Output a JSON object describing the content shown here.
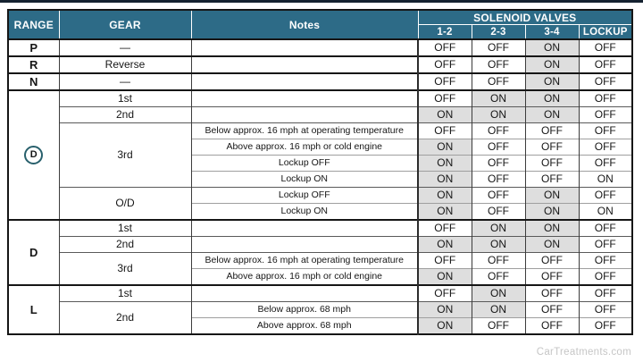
{
  "watermark": "CarTreatments.com",
  "colors": {
    "header_bg": "#2d6b87",
    "header_text": "#ffffff",
    "on_cell_bg": "#dedede",
    "top_bar": "#152230",
    "border_dark": "#161616",
    "watermark_text": "#c6c6c6",
    "circle_outline": "#28606c"
  },
  "chart_data": {
    "type": "table",
    "header": {
      "range": "RANGE",
      "gear": "GEAR",
      "notes": "Notes",
      "group": "SOLENOID VALVES",
      "solenoid_columns": [
        "1-2",
        "2-3",
        "3-4",
        "LOCKUP"
      ]
    },
    "on_value": "ON",
    "off_value": "OFF",
    "shade_on_columns": [
      "1-2",
      "2-3",
      "3-4"
    ],
    "sections": [
      {
        "range": "P",
        "circled": false,
        "gears": [
          {
            "name": "—",
            "rows": [
              {
                "note": "",
                "values": [
                  "OFF",
                  "OFF",
                  "ON",
                  "OFF"
                ]
              }
            ]
          }
        ]
      },
      {
        "range": "R",
        "circled": false,
        "gears": [
          {
            "name": "Reverse",
            "rows": [
              {
                "note": "",
                "values": [
                  "OFF",
                  "OFF",
                  "ON",
                  "OFF"
                ]
              }
            ]
          }
        ]
      },
      {
        "range": "N",
        "circled": false,
        "gears": [
          {
            "name": "—",
            "rows": [
              {
                "note": "",
                "values": [
                  "OFF",
                  "OFF",
                  "ON",
                  "OFF"
                ]
              }
            ]
          }
        ]
      },
      {
        "range": "D",
        "circled": true,
        "gears": [
          {
            "name": "1st",
            "rows": [
              {
                "note": "",
                "values": [
                  "OFF",
                  "ON",
                  "ON",
                  "OFF"
                ]
              }
            ]
          },
          {
            "name": "2nd",
            "rows": [
              {
                "note": "",
                "values": [
                  "ON",
                  "ON",
                  "ON",
                  "OFF"
                ]
              }
            ]
          },
          {
            "name": "3rd",
            "rows": [
              {
                "note": "Below approx. 16 mph at operating temperature",
                "values": [
                  "OFF",
                  "OFF",
                  "OFF",
                  "OFF"
                ]
              },
              {
                "note": "Above approx. 16 mph or cold engine",
                "values": [
                  "ON",
                  "OFF",
                  "OFF",
                  "OFF"
                ]
              },
              {
                "note": "Lockup OFF",
                "values": [
                  "ON",
                  "OFF",
                  "OFF",
                  "OFF"
                ]
              },
              {
                "note": "Lockup ON",
                "values": [
                  "ON",
                  "OFF",
                  "OFF",
                  "ON"
                ]
              }
            ]
          },
          {
            "name": "O/D",
            "rows": [
              {
                "note": "Lockup OFF",
                "values": [
                  "ON",
                  "OFF",
                  "ON",
                  "OFF"
                ]
              },
              {
                "note": "Lockup ON",
                "values": [
                  "ON",
                  "OFF",
                  "ON",
                  "ON"
                ]
              }
            ]
          }
        ]
      },
      {
        "range": "D",
        "circled": false,
        "gears": [
          {
            "name": "1st",
            "rows": [
              {
                "note": "",
                "values": [
                  "OFF",
                  "ON",
                  "ON",
                  "OFF"
                ]
              }
            ]
          },
          {
            "name": "2nd",
            "rows": [
              {
                "note": "",
                "values": [
                  "ON",
                  "ON",
                  "ON",
                  "OFF"
                ]
              }
            ]
          },
          {
            "name": "3rd",
            "rows": [
              {
                "note": "Below approx. 16 mph at operating temperature",
                "values": [
                  "OFF",
                  "OFF",
                  "OFF",
                  "OFF"
                ]
              },
              {
                "note": "Above approx. 16 mph or cold engine",
                "values": [
                  "ON",
                  "OFF",
                  "OFF",
                  "OFF"
                ]
              }
            ]
          }
        ]
      },
      {
        "range": "L",
        "circled": false,
        "gears": [
          {
            "name": "1st",
            "rows": [
              {
                "note": "",
                "values": [
                  "OFF",
                  "ON",
                  "OFF",
                  "OFF"
                ]
              }
            ]
          },
          {
            "name": "2nd",
            "rows": [
              {
                "note": "Below approx. 68 mph",
                "values": [
                  "ON",
                  "ON",
                  "OFF",
                  "OFF"
                ]
              },
              {
                "note": "Above approx. 68 mph",
                "values": [
                  "ON",
                  "OFF",
                  "OFF",
                  "OFF"
                ]
              }
            ]
          }
        ]
      }
    ]
  }
}
